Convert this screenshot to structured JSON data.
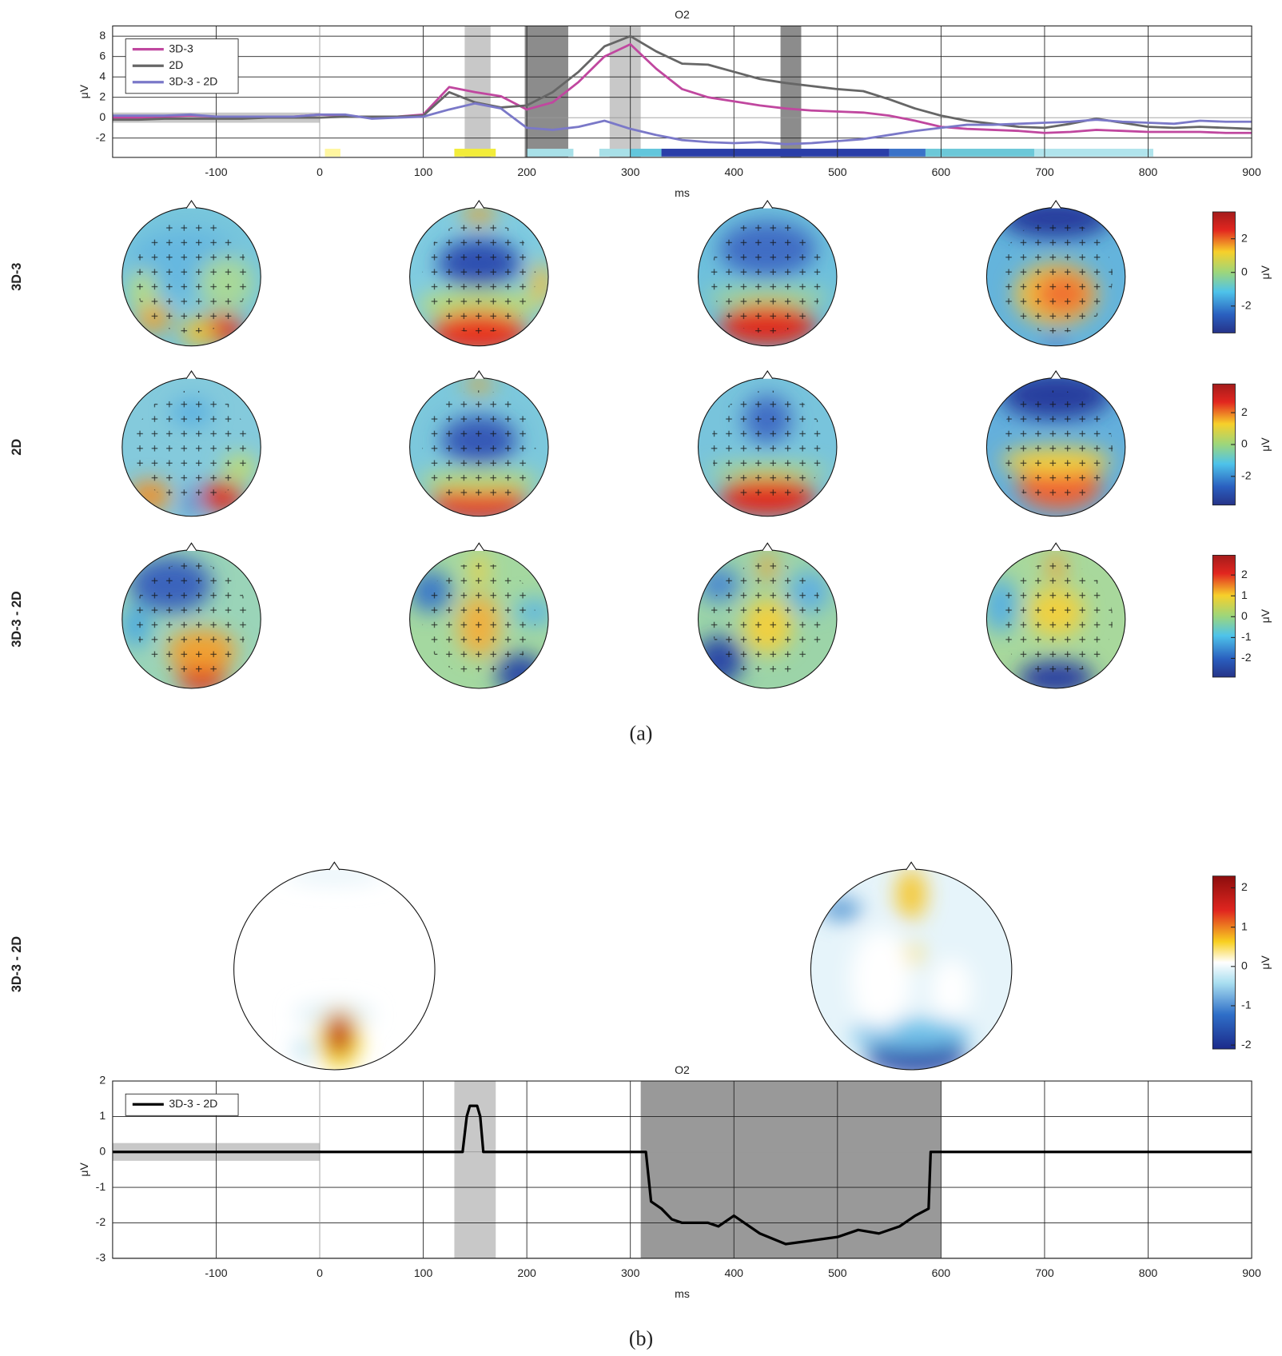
{
  "chart_data": [
    {
      "type": "line",
      "title": "O2",
      "xlabel": "ms",
      "ylabel": "μV",
      "x": [
        -200,
        -175,
        -150,
        -125,
        -100,
        -75,
        -50,
        -25,
        0,
        25,
        50,
        75,
        100,
        125,
        150,
        175,
        200,
        225,
        250,
        275,
        300,
        325,
        350,
        375,
        400,
        425,
        450,
        475,
        500,
        525,
        550,
        575,
        600,
        625,
        650,
        675,
        700,
        725,
        750,
        775,
        800,
        825,
        850,
        875,
        900
      ],
      "xlim": [
        -200,
        900
      ],
      "ylim": [
        -3.9,
        9
      ],
      "xticks": [
        -100,
        0,
        100,
        200,
        300,
        400,
        500,
        600,
        700,
        800,
        900
      ],
      "yticks": [
        -2,
        0,
        2,
        4,
        6,
        8
      ],
      "grid": true,
      "legend": "upper left",
      "series": [
        {
          "name": "3D-3",
          "color": "#c0479f",
          "values": [
            0,
            0,
            0.1,
            0.2,
            0.1,
            0,
            0,
            0.1,
            0.3,
            0.2,
            0,
            0.1,
            0.3,
            3.0,
            2.5,
            2.1,
            0.8,
            1.5,
            3.5,
            6,
            7.2,
            4.8,
            2.8,
            2.0,
            1.6,
            1.2,
            0.9,
            0.7,
            0.6,
            0.5,
            0.2,
            -0.3,
            -0.9,
            -1.1,
            -1.2,
            -1.3,
            -1.5,
            -1.4,
            -1.2,
            -1.3,
            -1.4,
            -1.4,
            -1.4,
            -1.5,
            -1.5
          ]
        },
        {
          "name": "2D",
          "color": "#666666",
          "values": [
            -0.2,
            -0.2,
            -0.1,
            -0.1,
            -0.1,
            -0.1,
            0,
            0,
            0,
            0.1,
            0.1,
            0.1,
            0.2,
            2.5,
            1.5,
            1.0,
            1.2,
            2.5,
            4.5,
            7,
            8.0,
            6.5,
            5.3,
            5.2,
            4.5,
            3.8,
            3.4,
            3.1,
            2.8,
            2.6,
            1.8,
            0.9,
            0.2,
            -0.3,
            -0.6,
            -0.9,
            -1.0,
            -0.6,
            -0.1,
            -0.5,
            -0.9,
            -1.0,
            -0.9,
            -1.0,
            -1.1
          ]
        },
        {
          "name": "3D-3 - 2D",
          "color": "#7a78c8",
          "values": [
            0.2,
            0.2,
            0.2,
            0.3,
            0.1,
            0.1,
            0.1,
            0.1,
            0.3,
            0.3,
            -0.1,
            0,
            0.1,
            0.8,
            1.4,
            0.9,
            -1.0,
            -1.2,
            -0.9,
            -0.3,
            -1.1,
            -1.7,
            -2.2,
            -2.4,
            -2.5,
            -2.4,
            -2.6,
            -2.5,
            -2.3,
            -2.1,
            -1.7,
            -1.3,
            -1.0,
            -0.7,
            -0.7,
            -0.6,
            -0.5,
            -0.4,
            -0.2,
            -0.4,
            -0.5,
            -0.6,
            -0.3,
            -0.4,
            -0.4
          ]
        }
      ],
      "shaded": [
        {
          "x": [
            140,
            165
          ],
          "color": "#c8c8c8"
        },
        {
          "x": [
            198,
            240
          ],
          "color": "#8c8c8c"
        },
        {
          "x": [
            280,
            310
          ],
          "color": "#c8c8c8"
        },
        {
          "x": [
            445,
            465
          ],
          "color": "#8c8c8c"
        }
      ],
      "baseline": {
        "x": [
          -200,
          0
        ],
        "y": [
          -0.5,
          0.5
        ],
        "color": "#c8c8c8"
      },
      "significance": [
        {
          "x": [
            5,
            20
          ],
          "color": "#fff6a0"
        },
        {
          "x": [
            130,
            170
          ],
          "color": "#f2ec3a"
        },
        {
          "x": [
            200,
            245
          ],
          "color": "#a8e0e8"
        },
        {
          "x": [
            270,
            300
          ],
          "color": "#a8e0e8"
        },
        {
          "x": [
            300,
            330
          ],
          "color": "#62c6dc"
        },
        {
          "x": [
            330,
            550
          ],
          "color": "#2a3ea8"
        },
        {
          "x": [
            550,
            585
          ],
          "color": "#3a72c8"
        },
        {
          "x": [
            585,
            690
          ],
          "color": "#6cc8d8"
        },
        {
          "x": [
            690,
            805
          ],
          "color": "#b0e4ec"
        }
      ]
    },
    {
      "type": "line",
      "title": "O2",
      "xlabel": "ms",
      "ylabel": "μV",
      "x": [
        -200,
        0,
        100,
        138,
        142,
        145,
        152,
        155,
        158,
        315,
        320,
        330,
        340,
        350,
        375,
        385,
        400,
        425,
        450,
        475,
        500,
        520,
        540,
        560,
        575,
        588,
        590,
        900
      ],
      "xlim": [
        -200,
        900
      ],
      "ylim": [
        -3,
        2
      ],
      "xticks": [
        -100,
        0,
        100,
        200,
        300,
        400,
        500,
        600,
        700,
        800,
        900
      ],
      "yticks": [
        -3,
        -2,
        -1,
        0,
        1,
        2
      ],
      "grid": true,
      "legend": "upper left",
      "series": [
        {
          "name": "3D-3 - 2D",
          "color": "#000000",
          "values": [
            0,
            0,
            0,
            0,
            1.0,
            1.3,
            1.3,
            1.0,
            0,
            0,
            -1.4,
            -1.6,
            -1.9,
            -2.0,
            -2.0,
            -2.1,
            -1.8,
            -2.3,
            -2.6,
            -2.5,
            -2.4,
            -2.2,
            -2.3,
            -2.1,
            -1.8,
            -1.6,
            0,
            0
          ]
        }
      ],
      "shaded": [
        {
          "x": [
            130,
            170
          ],
          "color": "#c8c8c8"
        },
        {
          "x": [
            310,
            600
          ],
          "color": "#999999"
        }
      ],
      "baseline": {
        "x": [
          -200,
          0
        ],
        "y": [
          -0.25,
          0.25
        ],
        "color": "#c8c8c8"
      },
      "significance": []
    }
  ],
  "topomaps": {
    "rows": [
      {
        "label": "3D-3",
        "color": "#c0479f",
        "colorbar": {
          "lim": [
            -3.6,
            3.6
          ],
          "ticks": [
            -2,
            0,
            2
          ],
          "label": "μV"
        }
      },
      {
        "label": "2D",
        "color": "#666666",
        "colorbar": {
          "lim": [
            -3.8,
            3.8
          ],
          "ticks": [
            -2,
            0,
            2
          ],
          "label": "μV"
        }
      },
      {
        "label": "3D-3 - 2D",
        "color": "#7a78c8",
        "colorbar": {
          "lim": [
            -2.9,
            2.95
          ],
          "ticks": [
            -2,
            -1,
            0,
            1,
            2
          ],
          "label": "μV"
        }
      }
    ],
    "caption": "(a)"
  },
  "panel_b": {
    "label": "3D-3 - 2D",
    "color": "#000000",
    "colorbar": {
      "lim": [
        -2.1,
        2.3
      ],
      "ticks": [
        -2,
        -1,
        0,
        1,
        2
      ],
      "label": "μV"
    },
    "caption": "(b)"
  }
}
